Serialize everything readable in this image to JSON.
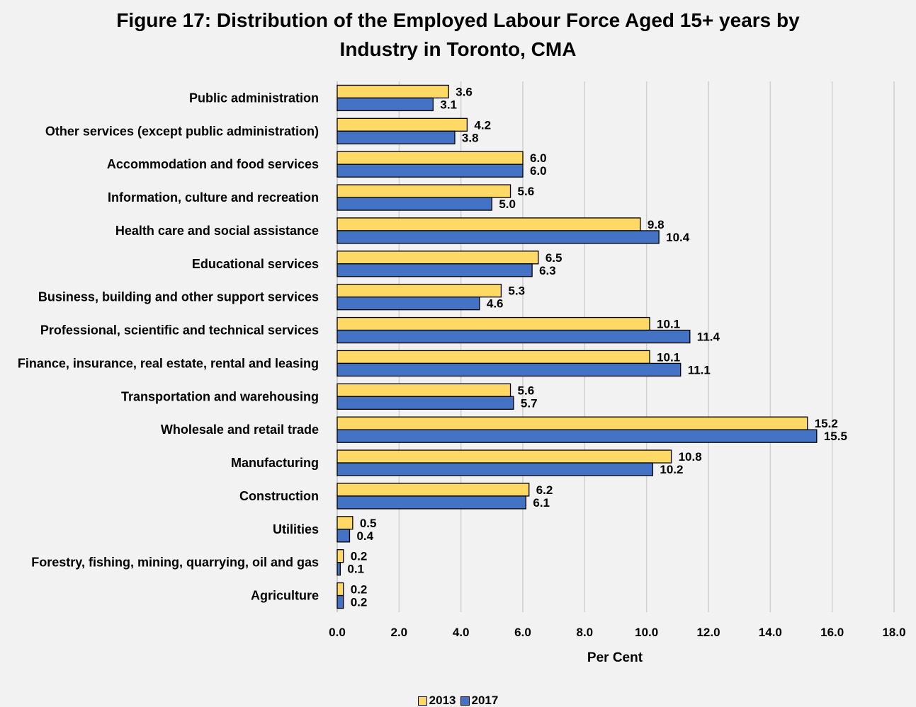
{
  "chart_data": {
    "type": "bar",
    "orientation": "horizontal",
    "title": "Figure 17: Distribution of the Employed Labour Force Aged 15+ years by Industry in Toronto, CMA",
    "title_lines": [
      "Figure 17: Distribution of the Employed Labour Force Aged 15+ years by",
      "Industry in Toronto, CMA"
    ],
    "xlabel": "Per Cent",
    "ylabel": "",
    "xlim": [
      0,
      18
    ],
    "x_ticks": [
      "0.0",
      "2.0",
      "4.0",
      "6.0",
      "8.0",
      "10.0",
      "12.0",
      "14.0",
      "16.0",
      "18.0"
    ],
    "grid": "vertical",
    "legend_position": "bottom",
    "categories": [
      "Public administration",
      "Other services (except public administration)",
      "Accommodation and food services",
      "Information, culture and recreation",
      "Health care and social assistance",
      "Educational services",
      "Business, building and other support services",
      "Professional, scientific and technical services",
      "Finance, insurance, real estate, rental and leasing",
      "Transportation and warehousing",
      "Wholesale and retail trade",
      "Manufacturing",
      "Construction",
      "Utilities",
      "Forestry, fishing, mining, quarrying, oil and gas",
      "Agriculture"
    ],
    "series": [
      {
        "name": "2013",
        "color": "#ffd966",
        "values": [
          3.6,
          4.2,
          6.0,
          5.6,
          9.8,
          6.5,
          5.3,
          10.1,
          10.1,
          5.6,
          15.2,
          10.8,
          6.2,
          0.5,
          0.2,
          0.2
        ],
        "labels": [
          "3.6",
          "4.2",
          "6.0",
          "5.6",
          "9.8",
          "6.5",
          "5.3",
          "10.1",
          "10.1",
          "5.6",
          "15.2",
          "10.8",
          "6.2",
          "0.5",
          "0.2",
          "0.2"
        ]
      },
      {
        "name": "2017",
        "color": "#4472c4",
        "values": [
          3.1,
          3.8,
          6.0,
          5.0,
          10.4,
          6.3,
          4.6,
          11.4,
          11.1,
          5.7,
          15.5,
          10.2,
          6.1,
          0.4,
          0.1,
          0.2
        ],
        "labels": [
          "3.1",
          "3.8",
          "6.0",
          "5.0",
          "10.4",
          "6.3",
          "4.6",
          "11.4",
          "11.1",
          "5.7",
          "15.5",
          "10.2",
          "6.1",
          "0.4",
          "0.1",
          "0.2"
        ]
      }
    ]
  }
}
